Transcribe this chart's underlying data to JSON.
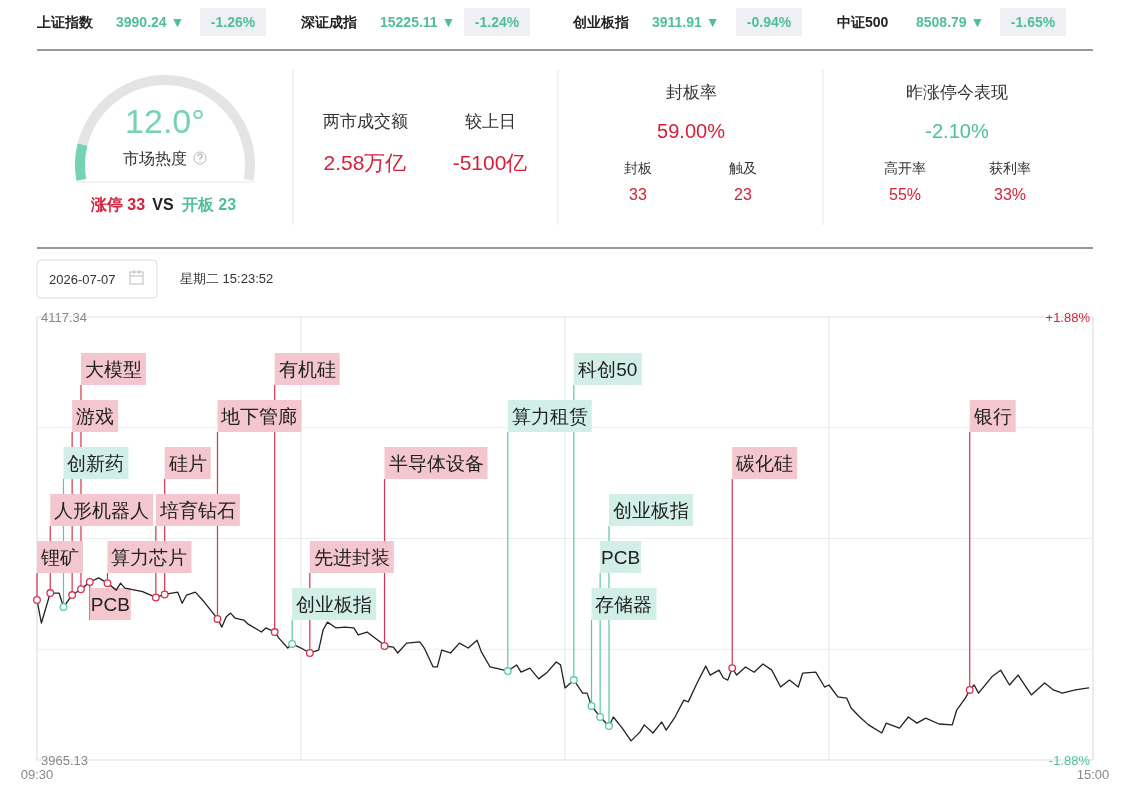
{
  "chart_data": [
    {
      "type": "other",
      "annotations": [
        "上证指数",
        "3990.24 ▼",
        "-1.26%",
        "深证成指",
        "15225.11 ▼",
        "-1.24%",
        "创业板指",
        "3911.91 ▼",
        "-0.94%",
        "中证500",
        "8508.79 ▼",
        "-1.65%"
      ]
    },
    {
      "type": "donut",
      "title": "12.0°",
      "subtitle": "市场热度",
      "categories": [
        null,
        null
      ],
      "values": [
        12,
        88
      ],
      "colors": [
        "#74d3b4",
        "#e4e4e4"
      ],
      "annotations": [
        "涨停 33",
        "VS",
        "开板 23"
      ]
    },
    {
      "type": "other",
      "annotations": [
        "两市成交额",
        "2.58万亿",
        "较上日",
        "-5100亿",
        "封板率",
        "59.00%",
        "封板",
        "33",
        "触及",
        "23",
        "昨涨停今表现",
        "-2.10%",
        "高开率",
        "55%",
        "获利率",
        "33%"
      ]
    },
    {
      "type": "line",
      "title": "2026-07-07",
      "subtitle": "星期二 15:23:52",
      "xlim": [
        9.5,
        15
      ],
      "xticks": [
        {
          "value": 9.5,
          "label": "09:30"
        },
        {
          "value": 10.875,
          "label": null
        },
        {
          "value": 12.25,
          "label": null
        },
        {
          "value": 13.625,
          "label": null
        },
        {
          "value": 15,
          "label": "15:00"
        }
      ],
      "ylim": [
        3965.13,
        4117.34
      ],
      "yticks": [
        {
          "value": 4117.34,
          "label": "4117.34"
        },
        {
          "value": 4079.29,
          "label": null
        },
        {
          "value": 4041.24,
          "label": null
        },
        {
          "value": 4003.18,
          "label": null
        },
        {
          "value": 3965.13,
          "label": "3965.13"
        }
      ],
      "y2lim": [
        -1.88,
        1.88
      ],
      "y2ticks": [
        {
          "value": 1.88,
          "label": "+1.88%"
        },
        {
          "value": -1.88,
          "label": "-1.88%"
        }
      ],
      "grid": true,
      "series": [
        {
          "type": "line",
          "color": "#222222",
          "x": [
            9.5,
            9.523,
            9.569,
            9.615,
            9.638,
            9.683,
            9.729,
            9.775,
            9.821,
            9.867,
            9.913,
            9.935,
            9.958,
            10.05,
            10.119,
            10.165,
            10.233,
            10.256,
            10.279,
            10.325,
            10.371,
            10.417,
            10.44,
            10.463,
            10.485,
            10.508,
            10.531,
            10.577,
            10.6,
            10.669,
            10.692,
            10.738,
            10.76,
            10.806,
            10.829,
            10.875,
            10.921,
            10.967,
            10.99,
            11.013,
            11.058,
            11.104,
            11.15,
            11.173,
            11.219,
            11.288,
            11.31,
            11.356,
            11.379,
            11.425,
            11.494,
            11.517,
            11.563,
            11.585,
            11.608,
            11.654,
            11.7,
            11.746,
            11.792,
            11.815,
            11.86,
            11.906,
            11.952,
            11.998,
            12.021,
            12.067,
            12.113,
            12.158,
            12.204,
            12.227,
            12.25,
            12.296,
            12.342,
            12.365,
            12.388,
            12.433,
            12.479,
            12.502,
            12.548,
            12.594,
            12.64,
            12.663,
            12.708,
            12.754,
            12.777,
            12.823,
            12.869,
            12.892,
            12.938,
            12.983,
            13.006,
            13.052,
            13.075,
            13.098,
            13.121,
            13.144,
            13.19,
            13.235,
            13.281,
            13.327,
            13.373,
            13.419,
            13.465,
            13.488,
            13.556,
            13.602,
            13.625,
            13.671,
            13.717,
            13.74,
            13.785,
            13.831,
            13.9,
            13.923,
            13.992,
            14.038,
            14.083,
            14.129,
            14.198,
            14.267,
            14.29,
            14.335,
            14.358,
            14.381,
            14.404,
            14.473,
            14.519,
            14.565,
            14.61,
            14.679,
            14.748,
            14.794,
            14.84,
            14.908,
            14.977
          ],
          "values": [
            4020.1,
            4012.2,
            4022.5,
            4022.5,
            4017.7,
            4021.8,
            4023.8,
            4026.3,
            4027.7,
            4025.9,
            4023.5,
            4025.9,
            4024.2,
            4023,
            4021,
            4022,
            4022.8,
            4019.0,
            4021.8,
            4022.8,
            4019.4,
            4015.6,
            4013.6,
            4010.8,
            4014.3,
            4015.6,
            4013.9,
            4013.2,
            4011.8,
            4009.1,
            4010.5,
            4009.1,
            4007.0,
            4003.6,
            4005.0,
            4003.6,
            4001.9,
            4002.9,
            4009.8,
            4012.5,
            4010.5,
            4010.8,
            4010.5,
            4008.1,
            4009.1,
            4005.7,
            4004.3,
            4003.9,
            4001.9,
            4005.3,
            4005.7,
            4003.6,
            3997.1,
            3997.1,
            4002.9,
            4001.9,
            4005.3,
            4003.6,
            4006.3,
            4002.2,
            3997.1,
            3996.4,
            3995.7,
            3997.8,
            3995.3,
            3996.7,
            3993.0,
            3995.3,
            3998.8,
            3997.8,
            3989.9,
            3992.6,
            3988.1,
            3988.1,
            3983.7,
            3979.9,
            3976.8,
            3979.9,
            3976.1,
            3971.7,
            3974.7,
            3977.2,
            3974.4,
            3978.2,
            3975.4,
            3979.9,
            3985.7,
            3985.1,
            3991.6,
            3997.4,
            3994.3,
            3996.0,
            3993.3,
            3992.6,
            3996.7,
            3994.3,
            3997.1,
            3995.3,
            3998.1,
            3996.0,
            3990.2,
            3992.6,
            3990.2,
            3995.0,
            3995.3,
            3990.2,
            3990.9,
            3986.8,
            3986.4,
            3983.0,
            3979.9,
            3977.2,
            3974.4,
            3977.8,
            3976.1,
            3979.9,
            3977.8,
            3979.5,
            3977.5,
            3977.2,
            3982.3,
            3986.4,
            3989.2,
            3990.9,
            3988.1,
            3993.7,
            3996.0,
            3990.9,
            3994.3,
            3987.5,
            3991.6,
            3989.2,
            3988.1,
            3989.2,
            3989.9
          ]
        },
        {
          "type": "scatter",
          "color": "#d6344e",
          "x": [
            9.5,
            9.569,
            9.683,
            9.729,
            9.775,
            9.867,
            10.119,
            10.165,
            10.44,
            10.738,
            10.921,
            11.31,
            13.121,
            14.358
          ],
          "values": [
            4020.1,
            4022.5,
            4021.8,
            4023.8,
            4026.3,
            4025.9,
            4021,
            4022,
            4013.6,
            4009.1,
            4001.9,
            4004.3,
            3996.7,
            3989.2
          ]
        },
        {
          "type": "scatter",
          "color": "#5cc7a8",
          "x": [
            9.638,
            10.829,
            11.952,
            12.296,
            12.388,
            12.433,
            12.479
          ],
          "values": [
            4017.7,
            4005.0,
            3995.7,
            3992.6,
            3983.7,
            3979.9,
            3976.8
          ]
        }
      ],
      "annotations": [
        {
          "text": "锂矿",
          "x": 9.5,
          "y": 4020.1
        },
        {
          "text": "人形机器人",
          "x": 9.569,
          "y": 4022.5
        },
        {
          "text": "创新药",
          "x": 9.638,
          "y": 4017.7
        },
        {
          "text": "游戏",
          "x": 9.683,
          "y": 4021.8
        },
        {
          "text": "大模型",
          "x": 9.729,
          "y": 4023.8
        },
        {
          "text": "PCB",
          "x": 9.775,
          "y": 4026.3
        },
        {
          "text": "算力芯片",
          "x": 9.867,
          "y": 4025.9
        },
        {
          "text": "培育钻石",
          "x": 10.119,
          "y": 4021
        },
        {
          "text": "硅片",
          "x": 10.165,
          "y": 4022
        },
        {
          "text": "地下管廊",
          "x": 10.44,
          "y": 4013.6
        },
        {
          "text": "有机硅",
          "x": 10.738,
          "y": 4009.1
        },
        {
          "text": "创业板指",
          "x": 10.829,
          "y": 4005.0
        },
        {
          "text": "先进封装",
          "x": 10.921,
          "y": 4001.9
        },
        {
          "text": "半导体设备",
          "x": 11.31,
          "y": 4004.3
        },
        {
          "text": "算力租赁",
          "x": 11.952,
          "y": 3995.7
        },
        {
          "text": "科创50",
          "x": 12.296,
          "y": 3992.6
        },
        {
          "text": "存储器",
          "x": 12.388,
          "y": 3983.7
        },
        {
          "text": "PCB",
          "x": 12.433,
          "y": 3979.9
        },
        {
          "text": "创业板指",
          "x": 12.479,
          "y": 3976.8
        },
        {
          "text": "碳化硅",
          "x": 13.121,
          "y": 3996.7
        },
        {
          "text": "银行",
          "x": 14.358,
          "y": 3989.2
        }
      ]
    }
  ]
}
